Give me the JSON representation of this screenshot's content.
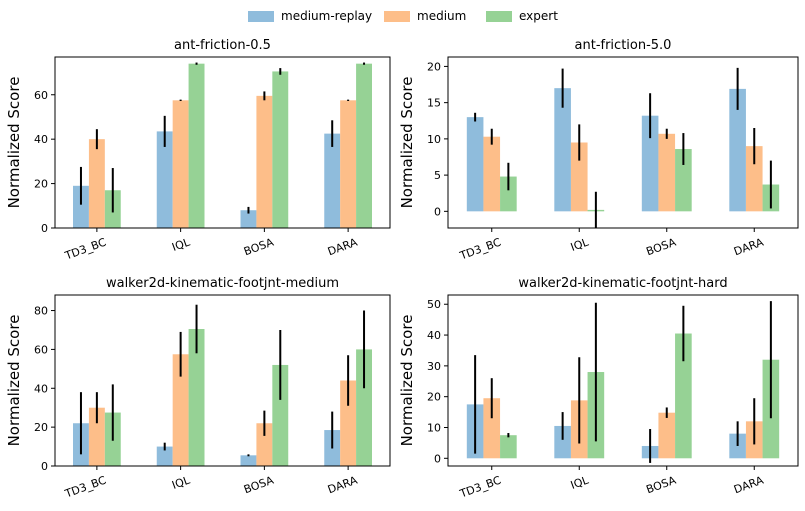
{
  "legend": [
    {
      "label": "medium-replay",
      "color": "#8fbcdc"
    },
    {
      "label": "medium",
      "color": "#fdbe89"
    },
    {
      "label": "expert",
      "color": "#96d295"
    }
  ],
  "chart_data": [
    {
      "type": "bar",
      "title": "ant-friction-0.5",
      "ylabel": "Normalized Score",
      "categories": [
        "TD3_BC",
        "IQL",
        "BOSA",
        "DARA"
      ],
      "ylim": [
        0,
        77
      ],
      "yticks": [
        0,
        20,
        40,
        60
      ],
      "series": [
        {
          "name": "medium-replay",
          "values": [
            19,
            43.5,
            8,
            42.5
          ],
          "errors": [
            8.5,
            7,
            1.5,
            6
          ]
        },
        {
          "name": "medium",
          "values": [
            40,
            57.5,
            59.5,
            57.5
          ],
          "errors": [
            4.5,
            0.3,
            2,
            0.3
          ]
        },
        {
          "name": "expert",
          "values": [
            17,
            74,
            70.5,
            74
          ],
          "errors": [
            10,
            0.5,
            1.5,
            0.5
          ]
        }
      ]
    },
    {
      "type": "bar",
      "title": "ant-friction-5.0",
      "ylabel": "Normalized Score",
      "categories": [
        "TD3_BC",
        "IQL",
        "BOSA",
        "DARA"
      ],
      "ylim": [
        -2.3,
        21.3
      ],
      "yticks": [
        0,
        5,
        10,
        15,
        20
      ],
      "series": [
        {
          "name": "medium-replay",
          "values": [
            13,
            17,
            13.2,
            16.9
          ],
          "errors": [
            0.6,
            2.7,
            3.1,
            2.9
          ]
        },
        {
          "name": "medium",
          "values": [
            10.3,
            9.5,
            10.7,
            9
          ],
          "errors": [
            1.1,
            2.5,
            0.7,
            2.5
          ]
        },
        {
          "name": "expert",
          "values": [
            4.8,
            0.2,
            8.6,
            3.7
          ],
          "errors": [
            1.9,
            2.5,
            2.2,
            3.3
          ]
        }
      ]
    },
    {
      "type": "bar",
      "title": "walker2d-kinematic-footjnt-medium",
      "ylabel": "Normalized Score",
      "categories": [
        "TD3_BC",
        "IQL",
        "BOSA",
        "DARA"
      ],
      "ylim": [
        0,
        88
      ],
      "yticks": [
        0,
        20,
        40,
        60,
        80
      ],
      "series": [
        {
          "name": "medium-replay",
          "values": [
            22,
            10,
            5.5,
            18.5
          ],
          "errors": [
            16,
            2,
            0.5,
            9.5
          ]
        },
        {
          "name": "medium",
          "values": [
            30,
            57.5,
            22,
            44
          ],
          "errors": [
            8,
            11.5,
            6.5,
            13
          ]
        },
        {
          "name": "expert",
          "values": [
            27.5,
            70.5,
            52,
            60
          ],
          "errors": [
            14.5,
            12.5,
            18,
            20
          ]
        }
      ]
    },
    {
      "type": "bar",
      "title": "walker2d-kinematic-footjnt-hard",
      "ylabel": "Normalized Score",
      "categories": [
        "TD3_BC",
        "IQL",
        "BOSA",
        "DARA"
      ],
      "ylim": [
        -2.5,
        53
      ],
      "yticks": [
        0,
        10,
        20,
        30,
        40,
        50
      ],
      "series": [
        {
          "name": "medium-replay",
          "values": [
            17.5,
            10.5,
            4,
            8
          ],
          "errors": [
            16,
            4.5,
            5.5,
            4
          ]
        },
        {
          "name": "medium",
          "values": [
            19.5,
            18.8,
            14.8,
            12
          ],
          "errors": [
            6.5,
            14,
            1.7,
            7.5
          ]
        },
        {
          "name": "expert",
          "values": [
            7.5,
            28,
            40.5,
            32
          ],
          "errors": [
            0.7,
            22.5,
            9,
            19
          ]
        }
      ]
    }
  ]
}
